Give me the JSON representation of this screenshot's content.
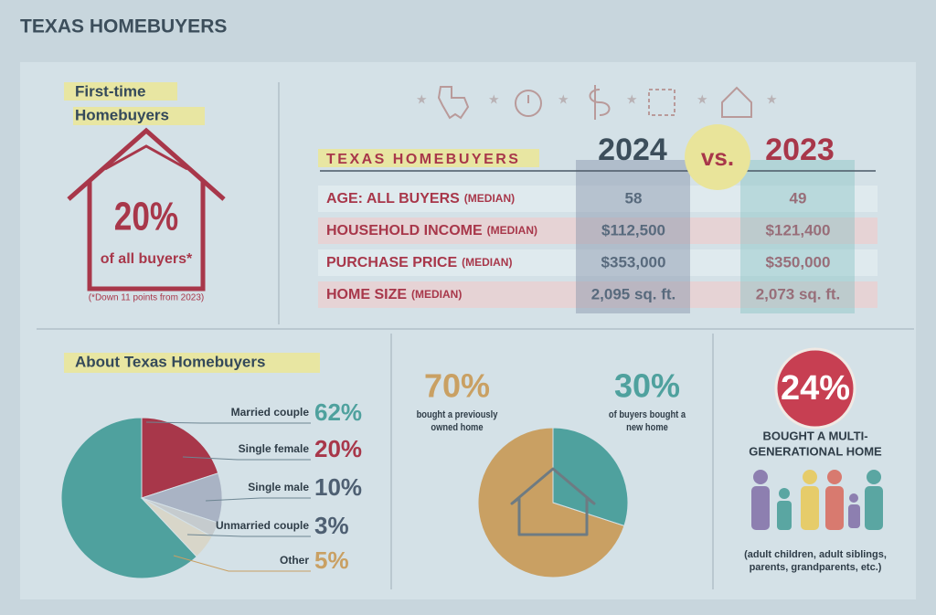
{
  "header": {
    "title": "TEXAS HOMEBUYERS"
  },
  "first_time": {
    "title": [
      "First-time",
      "Homebuyers"
    ],
    "value_label": "20%",
    "caption": "of all buyers*",
    "note": "(*Down 11 points from 2023)"
  },
  "comparison": {
    "title": "TEXAS HOMEBUYERS",
    "columns": [
      "2024",
      "vs.",
      "2023"
    ],
    "rows": [
      {
        "label": "AGE: ALL BUYERS",
        "qualifier": "(MEDIAN)",
        "values": [
          "58",
          "49"
        ]
      },
      {
        "label": "HOUSEHOLD INCOME",
        "qualifier": "(MEDIAN)",
        "values": [
          "$112,500",
          "$121,400"
        ]
      },
      {
        "label": "PURCHASE PRICE",
        "qualifier": "(MEDIAN)",
        "values": [
          "$353,000",
          "$350,000"
        ]
      },
      {
        "label": "HOME SIZE",
        "qualifier": "(MEDIAN)",
        "values": [
          "2,095 sq. ft.",
          "2,073 sq. ft."
        ]
      }
    ]
  },
  "about": {
    "title": "About Texas Homebuyers"
  },
  "chart_data": [
    {
      "type": "pie",
      "categories": [
        "Married couple",
        "Single female",
        "Single male",
        "Unmarried couple",
        "Other"
      ],
      "values": [
        62,
        20,
        10,
        3,
        5
      ],
      "value_labels": [
        "62%",
        "20%",
        "10%",
        "3%",
        "5%"
      ],
      "colors": [
        "#4fa19e",
        "#a8374a",
        "#a9b3c4",
        "#c5cbce",
        "#d8d6c9"
      ]
    },
    {
      "type": "pie",
      "categories": [
        "bought a previously owned home",
        "of buyers bought a new home"
      ],
      "values": [
        70,
        30
      ],
      "value_labels": [
        "70%",
        "30%"
      ],
      "colors": [
        "#c9a063",
        "#4fa19e"
      ]
    }
  ],
  "multigenerational": {
    "value_label": "24%",
    "title": [
      "BOUGHT A MULTI-",
      "GENERATIONAL HOME"
    ],
    "note": [
      "(adult children, adult siblings,",
      "parents, grandparents, etc.)"
    ]
  }
}
